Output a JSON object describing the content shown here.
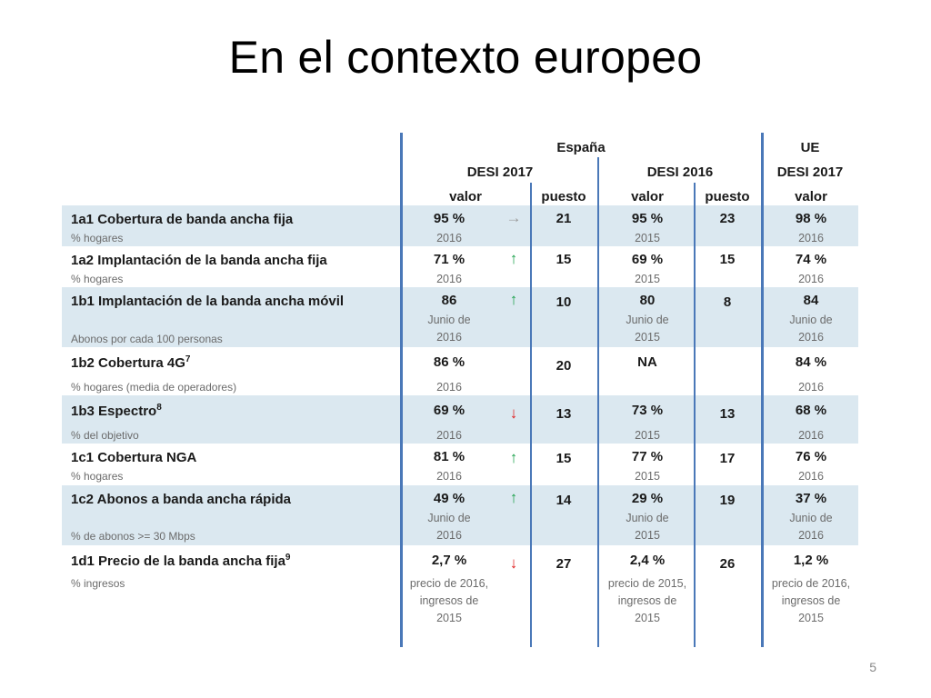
{
  "title": "En el contexto europeo",
  "page_number": "5",
  "headers": {
    "group_spain": "España",
    "group_eu": "UE",
    "desi2017": "DESI 2017",
    "desi2016": "DESI 2016",
    "desi2017_eu": "DESI 2017",
    "valor": "valor",
    "puesto": "puesto"
  },
  "colors": {
    "band": "#dbe8f0",
    "divider": "#4a78b8",
    "up": "#1aa04a",
    "down": "#e02020",
    "flat": "#9a9a9a"
  },
  "rows": [
    {
      "name": "1a1 Cobertura de banda ancha fija",
      "sup": "",
      "unit": "% hogares",
      "es17_val": "95 %",
      "es17_sub": "2016",
      "trend": "flat",
      "trend_glyph": "→",
      "es17_rank": "21",
      "es16_val": "95 %",
      "es16_sub": "2015",
      "es16_rank": "23",
      "eu17_val": "98 %",
      "eu17_sub": "2016"
    },
    {
      "name": "1a2 Implantación de la banda ancha fija",
      "sup": "",
      "unit": "% hogares",
      "es17_val": "71 %",
      "es17_sub": "2016",
      "trend": "up",
      "trend_glyph": "↑",
      "es17_rank": "15",
      "es16_val": "69 %",
      "es16_sub": "2015",
      "es16_rank": "15",
      "eu17_val": "74 %",
      "eu17_sub": "2016"
    },
    {
      "name": "1b1 Implantación de la banda ancha móvil",
      "sup": "",
      "unit": "Abonos por cada 100 personas",
      "es17_val": "86",
      "es17_sub": "Junio de 2016",
      "trend": "up",
      "trend_glyph": "↑",
      "es17_rank": "10",
      "es16_val": "80",
      "es16_sub": "Junio de 2015",
      "es16_rank": "8",
      "eu17_val": "84",
      "eu17_sub": "Junio de 2016"
    },
    {
      "name": "1b2 Cobertura 4G",
      "sup": "7",
      "unit": "% hogares (media de operadores)",
      "es17_val": "86 %",
      "es17_sub": "2016",
      "trend": "",
      "trend_glyph": "",
      "es17_rank": "20",
      "es16_val": "NA",
      "es16_sub": "",
      "es16_rank": "",
      "eu17_val": "84 %",
      "eu17_sub": "2016"
    },
    {
      "name": "1b3 Espectro",
      "sup": "8",
      "unit": "% del objetivo",
      "es17_val": "69 %",
      "es17_sub": "2016",
      "trend": "down",
      "trend_glyph": "↓",
      "es17_rank": "13",
      "es16_val": "73 %",
      "es16_sub": "2015",
      "es16_rank": "13",
      "eu17_val": "68 %",
      "eu17_sub": "2016"
    },
    {
      "name": "1c1 Cobertura NGA",
      "sup": "",
      "unit": "% hogares",
      "es17_val": "81 %",
      "es17_sub": "2016",
      "trend": "up",
      "trend_glyph": "↑",
      "es17_rank": "15",
      "es16_val": "77 %",
      "es16_sub": "2015",
      "es16_rank": "17",
      "eu17_val": "76 %",
      "eu17_sub": "2016"
    },
    {
      "name": "1c2 Abonos a banda ancha rápida",
      "sup": "",
      "unit": "% de abonos >= 30 Mbps",
      "es17_val": "49 %",
      "es17_sub": "Junio de 2016",
      "trend": "up",
      "trend_glyph": "↑",
      "es17_rank": "14",
      "es16_val": "29 %",
      "es16_sub": "Junio de 2015",
      "es16_rank": "19",
      "eu17_val": "37 %",
      "eu17_sub": "Junio de 2016"
    },
    {
      "name": "1d1 Precio de la banda ancha fija",
      "sup": "9",
      "unit": "% ingresos",
      "es17_val": "2,7 %",
      "es17_sub": "precio de 2016, ingresos de 2015",
      "trend": "down",
      "trend_glyph": "↓",
      "es17_rank": "27",
      "es16_val": "2,4 %",
      "es16_sub": "precio de 2015, ingresos de 2015",
      "es16_rank": "26",
      "eu17_val": "1,2 %",
      "eu17_sub": "precio de 2016, ingresos de 2015"
    }
  ]
}
